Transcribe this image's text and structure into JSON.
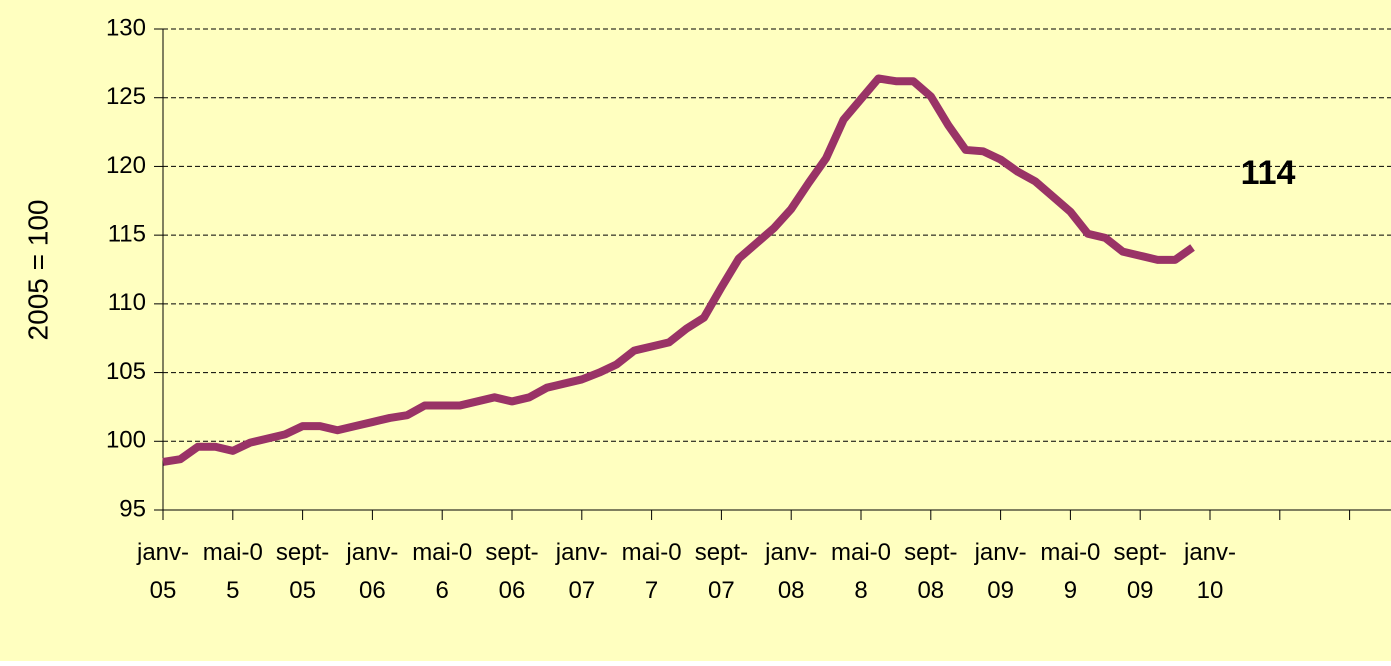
{
  "chart_data": {
    "type": "line",
    "ylabel": "2005 = 100",
    "annotation": "114",
    "categories": [
      "janv-05",
      null,
      null,
      null,
      "mai-05",
      null,
      null,
      null,
      "sept-05",
      null,
      null,
      null,
      "janv-06",
      null,
      null,
      null,
      "mai-06",
      null,
      null,
      null,
      "sept-06",
      null,
      null,
      null,
      "janv-07",
      null,
      null,
      null,
      "mai-07",
      null,
      null,
      null,
      "sept-07",
      null,
      null,
      null,
      "janv-08",
      null,
      null,
      null,
      "mai-08",
      null,
      null,
      null,
      "sept-08",
      null,
      null,
      null,
      "janv-09",
      null,
      null,
      null,
      "mai-09",
      null,
      null,
      null,
      "sept-09",
      null,
      null,
      null,
      "janv-10",
      null,
      null,
      null,
      null,
      null,
      null,
      null,
      null,
      null,
      null
    ],
    "series": [
      {
        "color": "#993366",
        "values": [
          98.5,
          98.7,
          99.6,
          99.6,
          99.3,
          99.9,
          100.2,
          100.5,
          101.1,
          101.1,
          100.8,
          101.1,
          101.4,
          101.7,
          101.9,
          102.6,
          102.6,
          102.6,
          102.9,
          103.2,
          102.9,
          103.2,
          103.9,
          104.2,
          104.5,
          105.0,
          105.6,
          106.6,
          106.9,
          107.2,
          108.2,
          109.0,
          111.2,
          113.3,
          114.4,
          115.5,
          116.9,
          118.8,
          120.6,
          123.4,
          124.9,
          126.4,
          126.2,
          126.2,
          125.1,
          123.0,
          121.2,
          121.1,
          120.5,
          119.6,
          118.9,
          117.8,
          116.7,
          115.1,
          114.8,
          113.8,
          113.5,
          113.2,
          113.2,
          114.1,
          null,
          null,
          null,
          null,
          null,
          null,
          null,
          null,
          null,
          null,
          null
        ]
      }
    ],
    "ylim": [
      95,
      130
    ],
    "yticks": [
      95,
      100,
      105,
      110,
      115,
      120,
      125,
      130
    ],
    "grid": true,
    "background": "#ffffc0"
  }
}
